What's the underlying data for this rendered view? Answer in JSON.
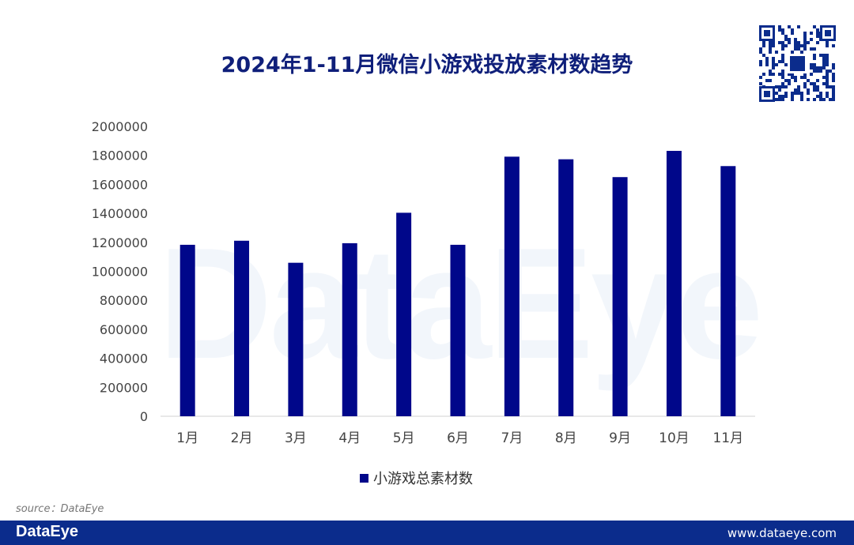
{
  "chart_data": {
    "type": "bar",
    "title": "2024年1-11月微信小游戏投放素材数趋势",
    "categories": [
      "1月",
      "2月",
      "3月",
      "4月",
      "5月",
      "6月",
      "7月",
      "8月",
      "9月",
      "10月",
      "11月"
    ],
    "series": [
      {
        "name": "小游戏总素材数",
        "color": "#00078a",
        "values": [
          1183000,
          1211000,
          1059000,
          1194000,
          1404000,
          1183000,
          1791000,
          1773000,
          1650000,
          1831000,
          1726000
        ]
      }
    ],
    "yticks": [
      0,
      200000,
      400000,
      600000,
      800000,
      1000000,
      1200000,
      1400000,
      1600000,
      1800000,
      2000000
    ],
    "ylim": [
      0,
      2000000
    ],
    "xlabel": "",
    "ylabel": "",
    "grid": false,
    "legend": "bottom"
  },
  "source": "source：DataEye",
  "footer": {
    "brand": "DataEye",
    "url": "www.dataeye.com"
  },
  "watermark": "DataEye"
}
